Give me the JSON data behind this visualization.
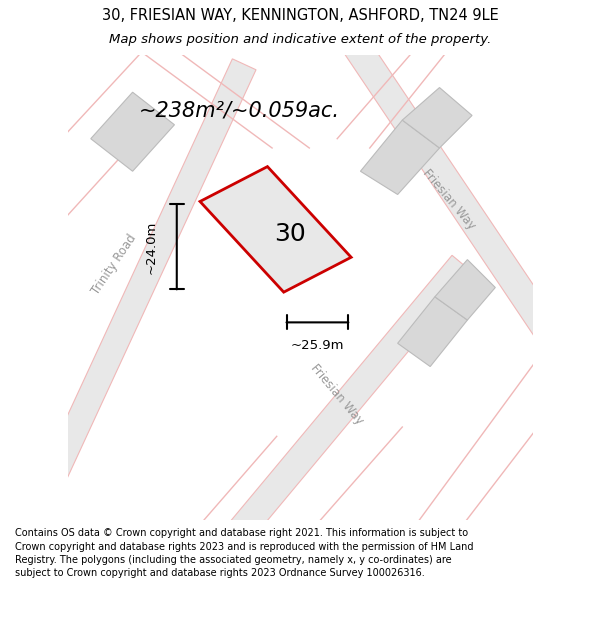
{
  "title_line1": "30, FRIESIAN WAY, KENNINGTON, ASHFORD, TN24 9LE",
  "title_line2": "Map shows position and indicative extent of the property.",
  "area_text": "~238m²/~0.059ac.",
  "number_label": "30",
  "dim_width_label": "~25.9m",
  "dim_height_label": "~24.0m",
  "road_label_left": "Trinity Road",
  "road_label_right1": "Friesian Way",
  "road_label_right2": "Friesian Way",
  "footer_text": "Contains OS data © Crown copyright and database right 2021. This information is subject to Crown copyright and database rights 2023 and is reproduced with the permission of HM Land Registry. The polygons (including the associated geometry, namely x, y co-ordinates) are subject to Crown copyright and database rights 2023 Ordnance Survey 100026316.",
  "bg_color": "#ffffff",
  "map_bg": "#ffffff",
  "plot_fill": "#e8e8e8",
  "plot_edge_color": "#cc0000",
  "road_line_color": "#f0b8b8",
  "road_fill_color": "#e8e8e8",
  "block_color": "#d8d8d8",
  "block_edge": "#bbbbbb",
  "dim_line_color": "#000000"
}
